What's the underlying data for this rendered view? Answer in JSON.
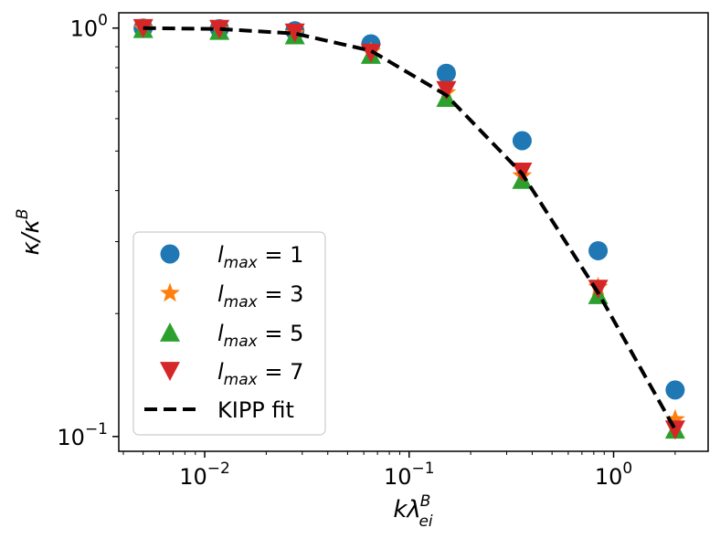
{
  "chart_data": {
    "type": "scatter",
    "xscale": "log",
    "yscale": "log",
    "xlim": [
      0.0038,
      2.9
    ],
    "ylim": [
      0.092,
      1.09
    ],
    "xlabel": "kλ",
    "xlabel_sup": "B",
    "xlabel_sub": "ei",
    "ylabel": "κ/κ",
    "ylabel_sup": "B",
    "x_ticks": [
      {
        "value": 0.01,
        "base": "10",
        "exp": "−2"
      },
      {
        "value": 0.1,
        "base": "10",
        "exp": "−1"
      },
      {
        "value": 1,
        "base": "10",
        "exp": "0"
      }
    ],
    "y_ticks": [
      {
        "value": 0.1,
        "base": "10",
        "exp": "−1"
      },
      {
        "value": 1,
        "base": "10",
        "exp": "0"
      }
    ],
    "x": [
      0.005,
      0.0118,
      0.0276,
      0.065,
      0.152,
      0.357,
      0.84,
      2.0
    ],
    "series": [
      {
        "name": "l_max = 1",
        "label_main": "l",
        "label_sub": "max",
        "label_val": " = 1",
        "marker": "circle",
        "color": "#1f77b4",
        "values": [
          1.0,
          0.997,
          0.985,
          0.915,
          0.775,
          0.53,
          0.285,
          0.13
        ]
      },
      {
        "name": "l_max = 3",
        "label_main": "l",
        "label_sub": "max",
        "label_val": " = 3",
        "marker": "star",
        "color": "#ff7f0e",
        "values": [
          0.997,
          0.99,
          0.97,
          0.875,
          0.695,
          0.435,
          0.232,
          0.11
        ]
      },
      {
        "name": "l_max = 5",
        "label_main": "l",
        "label_sub": "max",
        "label_val": " = 5",
        "marker": "triangle-up",
        "color": "#2ca02c",
        "values": [
          0.995,
          0.985,
          0.96,
          0.86,
          0.675,
          0.425,
          0.222,
          0.104
        ]
      },
      {
        "name": "l_max = 7",
        "label_main": "l",
        "label_sub": "max",
        "label_val": " = 7",
        "marker": "triangle-down",
        "color": "#d62728",
        "values": [
          1.0,
          0.995,
          0.975,
          0.87,
          0.705,
          0.445,
          0.23,
          0.104
        ]
      }
    ],
    "fit": {
      "name": "KIPP fit",
      "color": "#000000",
      "x": [
        0.005,
        0.0118,
        0.0276,
        0.065,
        0.152,
        0.357,
        0.84,
        2.0
      ],
      "values": [
        1.0,
        0.995,
        0.97,
        0.88,
        0.685,
        0.44,
        0.225,
        0.104
      ]
    },
    "legend_position": "lower left",
    "grid": false
  }
}
